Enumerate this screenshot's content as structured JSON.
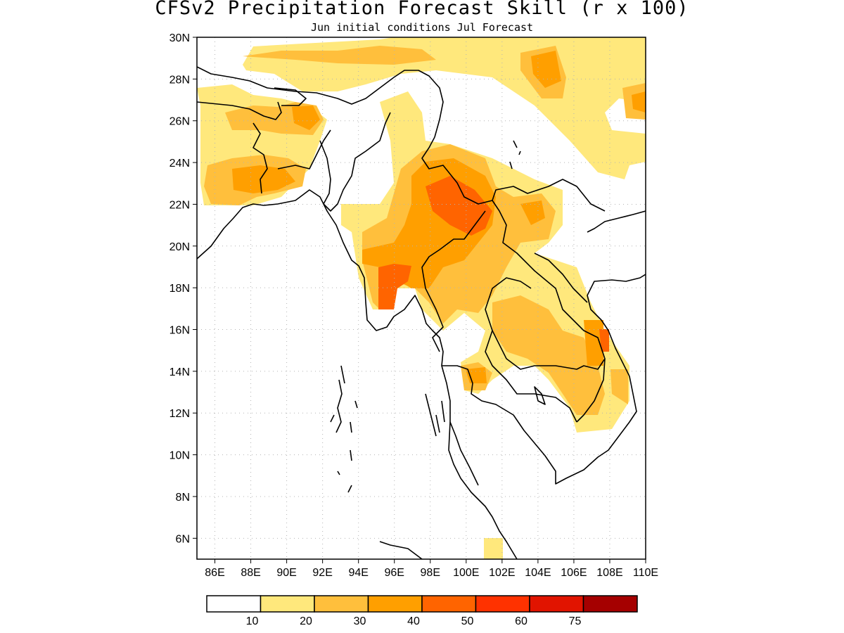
{
  "title": "CFSv2 Precipitation Forecast Skill (r x 100)",
  "subtitle": "Jun initial conditions  Jul Forecast",
  "map": {
    "lon_range": [
      85,
      110
    ],
    "lat_range": [
      5,
      30
    ],
    "lon_ticks": [
      "86E",
      "88E",
      "90E",
      "92E",
      "94E",
      "96E",
      "98E",
      "100E",
      "102E",
      "104E",
      "106E",
      "108E",
      "110E"
    ],
    "lat_ticks": [
      "6N",
      "8N",
      "10N",
      "12N",
      "14N",
      "16N",
      "18N",
      "20N",
      "22N",
      "24N",
      "26N",
      "28N",
      "30N"
    ],
    "grid": true,
    "coastlines": true,
    "country_borders": true
  },
  "colorbar": {
    "levels": [
      "10",
      "20",
      "30",
      "40",
      "50",
      "60",
      "75"
    ],
    "colors": [
      "#ffffff",
      "#ffe87c",
      "#ffbf3c",
      "#ff9f00",
      "#ff6400",
      "#ff3200",
      "#e11400",
      "#a50000"
    ]
  }
}
